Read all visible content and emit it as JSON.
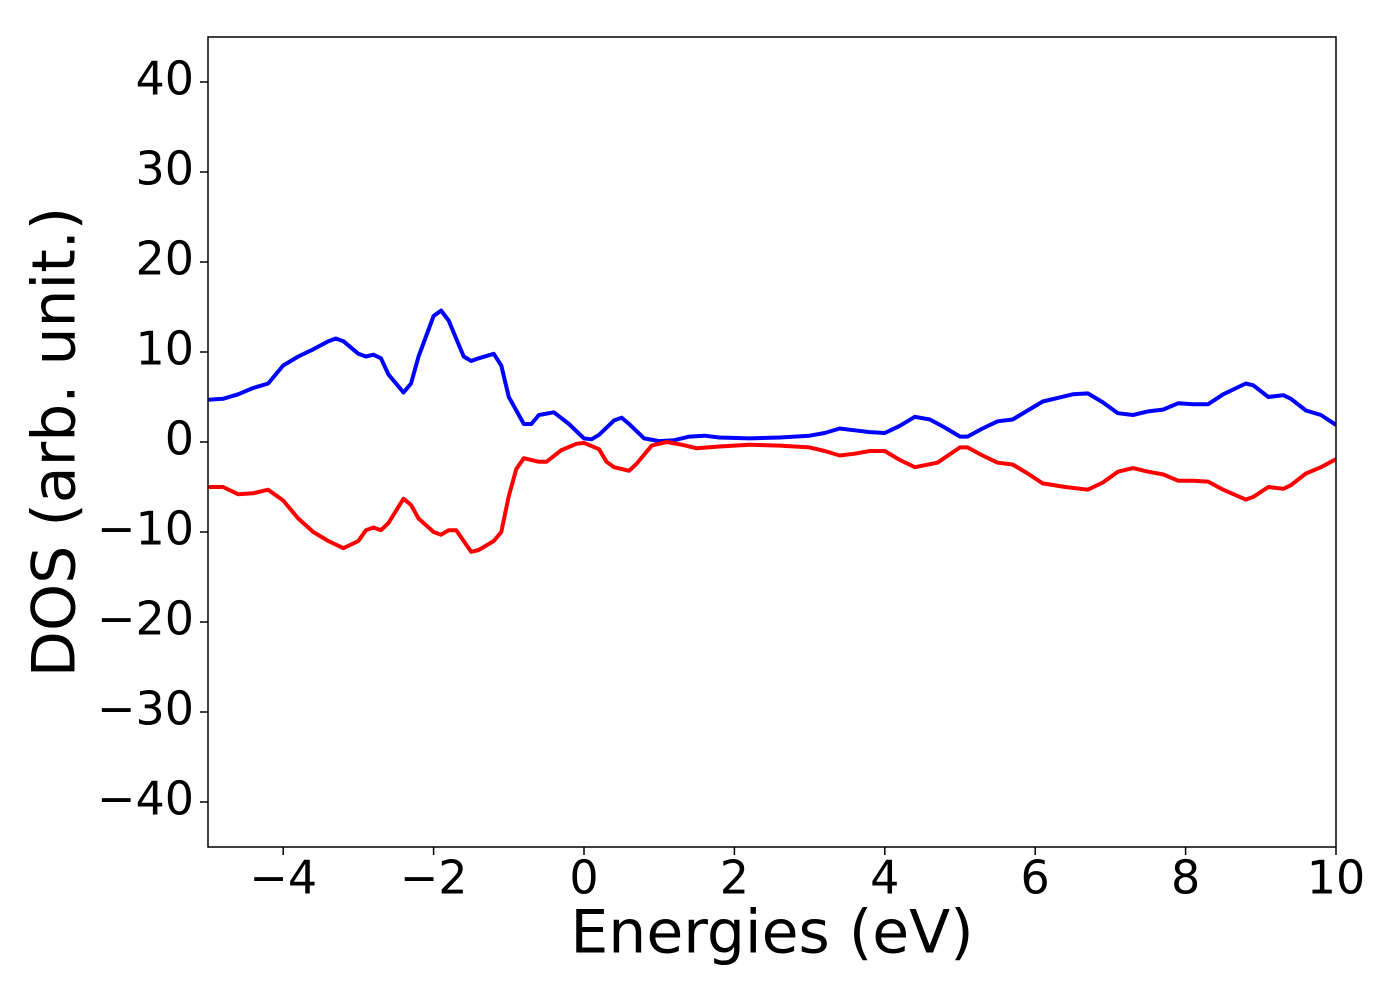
{
  "chart_data": {
    "type": "line",
    "x_label": "Energies (eV)",
    "y_label": "DOS (arb. unit.)",
    "xlim": [
      -5,
      10
    ],
    "ylim": [
      -45,
      45
    ],
    "xticks": [
      {
        "value": -4,
        "label": "−4"
      },
      {
        "value": -2,
        "label": "−2"
      },
      0,
      2,
      4,
      6,
      8,
      10
    ],
    "yticks": [
      {
        "value": -40,
        "label": "−40"
      },
      {
        "value": -30,
        "label": "−30"
      },
      {
        "value": -20,
        "label": "−20"
      },
      {
        "value": -10,
        "label": "−10"
      },
      0,
      10,
      20,
      30,
      40
    ],
    "grid": false,
    "series": [
      {
        "color": "#0000ff",
        "x": [
          -5,
          -4.8,
          -4.6,
          -4.4,
          -4.2,
          -4,
          -3.8,
          -3.6,
          -3.4,
          -3.3,
          -3.2,
          -3,
          -2.9,
          -2.8,
          -2.7,
          -2.6,
          -2.4,
          -2.3,
          -2.2,
          -2,
          -1.9,
          -1.8,
          -1.6,
          -1.5,
          -1.4,
          -1.2,
          -1.1,
          -1,
          -0.8,
          -0.7,
          -0.6,
          -0.4,
          -0.2,
          0,
          0.1,
          0.2,
          0.4,
          0.5,
          0.6,
          0.8,
          1,
          1.2,
          1.4,
          1.6,
          1.8,
          2.2,
          2.6,
          3,
          3.2,
          3.4,
          3.6,
          3.8,
          4,
          4.2,
          4.4,
          4.6,
          4.8,
          5,
          5.1,
          5.3,
          5.5,
          5.7,
          5.9,
          6.1,
          6.3,
          6.5,
          6.7,
          6.9,
          7.1,
          7.3,
          7.5,
          7.7,
          7.9,
          8.1,
          8.3,
          8.5,
          8.8,
          8.9,
          9.1,
          9.3,
          9.4,
          9.6,
          9.8,
          10
        ],
        "values": [
          4.7,
          4.8,
          5.3,
          6,
          6.5,
          8.5,
          9.5,
          10.3,
          11.2,
          11.5,
          11.2,
          9.8,
          9.5,
          9.7,
          9.3,
          7.5,
          5.5,
          6.5,
          9.5,
          14,
          14.6,
          13.5,
          9.5,
          9,
          9.3,
          9.8,
          8.5,
          5,
          2,
          2,
          3,
          3.3,
          2,
          0.4,
          0.3,
          0.8,
          2.4,
          2.7,
          2,
          0.4,
          0.1,
          0.2,
          0.6,
          0.7,
          0.5,
          0.4,
          0.5,
          0.7,
          1,
          1.5,
          1.3,
          1.1,
          1,
          1.8,
          2.8,
          2.5,
          1.6,
          0.6,
          0.6,
          1.5,
          2.3,
          2.5,
          3.5,
          4.5,
          4.9,
          5.3,
          5.4,
          4.4,
          3.2,
          3,
          3.4,
          3.6,
          4.3,
          4.2,
          4.2,
          5.3,
          6.5,
          6.3,
          5,
          5.2,
          4.8,
          3.5,
          3,
          1.9
        ]
      },
      {
        "color": "#ff0000",
        "x": [
          -5,
          -4.8,
          -4.6,
          -4.4,
          -4.2,
          -4,
          -3.8,
          -3.6,
          -3.4,
          -3.2,
          -3,
          -2.9,
          -2.8,
          -2.7,
          -2.6,
          -2.4,
          -2.3,
          -2.2,
          -2,
          -1.9,
          -1.8,
          -1.7,
          -1.6,
          -1.5,
          -1.4,
          -1.2,
          -1.1,
          -1,
          -0.9,
          -0.8,
          -0.6,
          -0.5,
          -0.3,
          -0.1,
          0,
          0.2,
          0.3,
          0.4,
          0.6,
          0.7,
          0.9,
          1.1,
          1.3,
          1.5,
          1.8,
          2.2,
          2.6,
          3,
          3.2,
          3.4,
          3.6,
          3.8,
          4,
          4.2,
          4.4,
          4.7,
          5,
          5.1,
          5.3,
          5.5,
          5.7,
          5.9,
          6.1,
          6.4,
          6.7,
          6.9,
          7.1,
          7.3,
          7.5,
          7.7,
          7.9,
          8.1,
          8.3,
          8.5,
          8.8,
          8.9,
          9.1,
          9.3,
          9.4,
          9.6,
          9.8,
          10
        ],
        "values": [
          -5,
          -5,
          -5.8,
          -5.7,
          -5.3,
          -6.5,
          -8.5,
          -10,
          -11,
          -11.8,
          -11,
          -9.8,
          -9.5,
          -9.8,
          -9,
          -6.3,
          -7,
          -8.5,
          -10,
          -10.3,
          -9.8,
          -9.8,
          -11,
          -12.2,
          -12,
          -11,
          -10,
          -6,
          -3,
          -1.8,
          -2.2,
          -2.2,
          -0.9,
          -0.2,
          -0.1,
          -0.8,
          -2.2,
          -2.8,
          -3.2,
          -2.4,
          -0.4,
          0,
          -0.3,
          -0.7,
          -0.5,
          -0.3,
          -0.4,
          -0.6,
          -1,
          -1.5,
          -1.3,
          -1,
          -1,
          -2,
          -2.8,
          -2.3,
          -0.6,
          -0.6,
          -1.5,
          -2.3,
          -2.5,
          -3.5,
          -4.6,
          -5,
          -5.3,
          -4.5,
          -3.3,
          -2.9,
          -3.3,
          -3.6,
          -4.3,
          -4.3,
          -4.4,
          -5.3,
          -6.4,
          -6.1,
          -5,
          -5.2,
          -4.8,
          -3.5,
          -2.8,
          -1.9
        ]
      }
    ]
  }
}
